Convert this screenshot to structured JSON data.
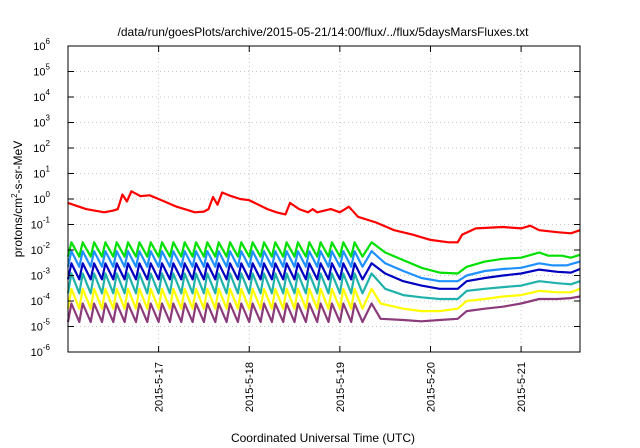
{
  "chart_data": {
    "type": "line",
    "title": "/data/run/goesPlots/archive/2015-05-21/14:00/flux/../flux/5daysMarsFluxes.txt",
    "xlabel": "Coordinated Universal Time (UTC)",
    "ylabel_base": "protons/cm",
    "ylabel_exp": "2",
    "ylabel_rest": "-s-sr-MeV",
    "yscale": "log",
    "ylim_exp": [
      -6,
      6
    ],
    "y_ticks": [
      {
        "base": "10",
        "exp": "-6",
        "e": -6
      },
      {
        "base": "10",
        "exp": "-5",
        "e": -5
      },
      {
        "base": "10",
        "exp": "-4",
        "e": -4
      },
      {
        "base": "10",
        "exp": "-3",
        "e": -3
      },
      {
        "base": "10",
        "exp": "-2",
        "e": -2
      },
      {
        "base": "10",
        "exp": "-1",
        "e": -1
      },
      {
        "base": "10",
        "exp": "0",
        "e": 0
      },
      {
        "base": "10",
        "exp": "1",
        "e": 1
      },
      {
        "base": "10",
        "exp": "2",
        "e": 2
      },
      {
        "base": "10",
        "exp": "3",
        "e": 3
      },
      {
        "base": "10",
        "exp": "4",
        "e": 4
      },
      {
        "base": "10",
        "exp": "5",
        "e": 5
      },
      {
        "base": "10",
        "exp": "6",
        "e": 6
      }
    ],
    "xlim_days": [
      16.0,
      21.65
    ],
    "x_ticks": [
      {
        "label": "2015-5-17",
        "day": 17
      },
      {
        "label": "2015-5-18",
        "day": 18
      },
      {
        "label": "2015-5-19",
        "day": 19
      },
      {
        "label": "2015-5-20",
        "day": 20
      },
      {
        "label": "2015-5-21",
        "day": 21
      }
    ],
    "grid": true,
    "series": [
      {
        "color": "#ff0000",
        "points": [
          [
            16.0,
            0.7
          ],
          [
            16.2,
            0.4
          ],
          [
            16.4,
            0.3
          ],
          [
            16.5,
            0.35
          ],
          [
            16.55,
            0.4
          ],
          [
            16.6,
            1.5
          ],
          [
            16.65,
            0.8
          ],
          [
            16.7,
            2.0
          ],
          [
            16.8,
            1.3
          ],
          [
            16.9,
            1.4
          ],
          [
            17.0,
            1.0
          ],
          [
            17.2,
            0.5
          ],
          [
            17.4,
            0.3
          ],
          [
            17.5,
            0.32
          ],
          [
            17.55,
            0.4
          ],
          [
            17.6,
            1.2
          ],
          [
            17.65,
            0.6
          ],
          [
            17.7,
            1.8
          ],
          [
            17.8,
            1.3
          ],
          [
            17.9,
            1.0
          ],
          [
            18.0,
            0.9
          ],
          [
            18.2,
            0.4
          ],
          [
            18.3,
            0.3
          ],
          [
            18.4,
            0.25
          ],
          [
            18.45,
            0.7
          ],
          [
            18.55,
            0.4
          ],
          [
            18.65,
            0.3
          ],
          [
            18.7,
            0.4
          ],
          [
            18.75,
            0.3
          ],
          [
            18.9,
            0.4
          ],
          [
            19.0,
            0.3
          ],
          [
            19.1,
            0.5
          ],
          [
            19.2,
            0.2
          ],
          [
            19.4,
            0.12
          ],
          [
            19.6,
            0.06
          ],
          [
            19.8,
            0.04
          ],
          [
            20.0,
            0.025
          ],
          [
            20.2,
            0.02
          ],
          [
            20.3,
            0.02
          ],
          [
            20.35,
            0.04
          ],
          [
            20.5,
            0.07
          ],
          [
            20.8,
            0.08
          ],
          [
            21.0,
            0.07
          ],
          [
            21.1,
            0.09
          ],
          [
            21.2,
            0.06
          ],
          [
            21.4,
            0.05
          ],
          [
            21.55,
            0.045
          ],
          [
            21.65,
            0.06
          ]
        ]
      },
      {
        "color": "#00e000",
        "zig": {
          "start": 16.0,
          "end": 19.35,
          "period": 0.125,
          "peak": 0.02,
          "trough": 0.0055
        },
        "tail": [
          [
            19.35,
            0.02
          ],
          [
            19.5,
            0.008
          ],
          [
            19.7,
            0.004
          ],
          [
            19.9,
            0.002
          ],
          [
            20.1,
            0.0013
          ],
          [
            20.3,
            0.0012
          ],
          [
            20.4,
            0.0022
          ],
          [
            20.6,
            0.0035
          ],
          [
            20.8,
            0.0045
          ],
          [
            21.0,
            0.005
          ],
          [
            21.2,
            0.008
          ],
          [
            21.3,
            0.006
          ],
          [
            21.45,
            0.006
          ],
          [
            21.55,
            0.005
          ],
          [
            21.65,
            0.0065
          ]
        ]
      },
      {
        "color": "#1e90ff",
        "zig": {
          "start": 16.0,
          "end": 19.35,
          "period": 0.125,
          "peak": 0.009,
          "trough": 0.0022
        },
        "tail": [
          [
            19.35,
            0.009
          ],
          [
            19.5,
            0.003
          ],
          [
            19.7,
            0.0015
          ],
          [
            19.9,
            0.0008
          ],
          [
            20.1,
            0.0006
          ],
          [
            20.3,
            0.0006
          ],
          [
            20.4,
            0.001
          ],
          [
            20.6,
            0.0015
          ],
          [
            20.8,
            0.0018
          ],
          [
            21.0,
            0.002
          ],
          [
            21.2,
            0.003
          ],
          [
            21.35,
            0.0025
          ],
          [
            21.5,
            0.0025
          ],
          [
            21.65,
            0.0035
          ]
        ]
      },
      {
        "color": "#0000c0",
        "zig": {
          "start": 16.0,
          "end": 19.35,
          "period": 0.125,
          "peak": 0.003,
          "trough": 0.0007
        },
        "tail": [
          [
            19.35,
            0.003
          ],
          [
            19.5,
            0.0012
          ],
          [
            19.7,
            0.0006
          ],
          [
            19.9,
            0.0004
          ],
          [
            20.1,
            0.0003
          ],
          [
            20.3,
            0.0003
          ],
          [
            20.4,
            0.0006
          ],
          [
            20.6,
            0.0008
          ],
          [
            20.8,
            0.001
          ],
          [
            21.0,
            0.0012
          ],
          [
            21.2,
            0.0017
          ],
          [
            21.4,
            0.0014
          ],
          [
            21.55,
            0.0013
          ],
          [
            21.65,
            0.0018
          ]
        ]
      },
      {
        "color": "#20b2aa",
        "zig": {
          "start": 16.0,
          "end": 19.35,
          "period": 0.125,
          "peak": 0.0012,
          "trough": 0.0002
        },
        "tail": [
          [
            19.35,
            0.0012
          ],
          [
            19.5,
            0.0003
          ],
          [
            19.7,
            0.00017
          ],
          [
            19.9,
            0.00014
          ],
          [
            20.1,
            0.00012
          ],
          [
            20.3,
            0.00012
          ],
          [
            20.4,
            0.00025
          ],
          [
            20.6,
            0.0003
          ],
          [
            20.8,
            0.00035
          ],
          [
            21.0,
            0.0004
          ],
          [
            21.2,
            0.0006
          ],
          [
            21.4,
            0.0005
          ],
          [
            21.55,
            0.00045
          ],
          [
            21.65,
            0.0006
          ]
        ]
      },
      {
        "color": "#ffff00",
        "zig": {
          "start": 16.0,
          "end": 19.35,
          "period": 0.125,
          "peak": 0.0003,
          "trough": 5e-05
        },
        "tail": [
          [
            19.35,
            0.0003
          ],
          [
            19.45,
            8e-05
          ],
          [
            19.7,
            5e-05
          ],
          [
            19.9,
            4e-05
          ],
          [
            20.1,
            4e-05
          ],
          [
            20.3,
            5e-05
          ],
          [
            20.4,
            0.0001
          ],
          [
            20.6,
            0.00012
          ],
          [
            20.8,
            0.00015
          ],
          [
            21.0,
            0.00017
          ],
          [
            21.2,
            0.00025
          ],
          [
            21.4,
            0.00022
          ],
          [
            21.55,
            0.00022
          ],
          [
            21.65,
            0.0003
          ]
        ]
      },
      {
        "color": "#8b3a7a",
        "zig": {
          "start": 16.0,
          "end": 19.35,
          "period": 0.125,
          "peak": 8e-05,
          "trough": 1.5e-05
        },
        "tail": [
          [
            19.35,
            8e-05
          ],
          [
            19.45,
            2e-05
          ],
          [
            19.7,
            1.8e-05
          ],
          [
            19.9,
            1.6e-05
          ],
          [
            20.1,
            1.8e-05
          ],
          [
            20.3,
            2e-05
          ],
          [
            20.4,
            4e-05
          ],
          [
            20.6,
            5e-05
          ],
          [
            20.8,
            6e-05
          ],
          [
            21.0,
            8e-05
          ],
          [
            21.2,
            0.00012
          ],
          [
            21.4,
            0.00012
          ],
          [
            21.55,
            0.00013
          ],
          [
            21.65,
            0.00015
          ]
        ]
      }
    ]
  }
}
